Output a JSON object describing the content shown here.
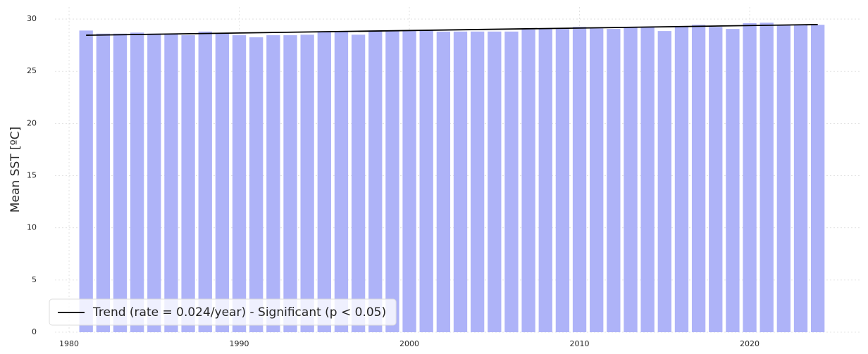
{
  "chart_data": {
    "type": "bar",
    "ylabel": "Mean SST [ºC]",
    "x": [
      1981,
      1982,
      1983,
      1984,
      1985,
      1986,
      1987,
      1988,
      1989,
      1990,
      1991,
      1992,
      1993,
      1994,
      1995,
      1996,
      1997,
      1998,
      1999,
      2000,
      2001,
      2002,
      2003,
      2004,
      2005,
      2006,
      2007,
      2008,
      2009,
      2010,
      2011,
      2012,
      2013,
      2014,
      2015,
      2016,
      2017,
      2018,
      2019,
      2020,
      2021,
      2022,
      2023,
      2024
    ],
    "values": [
      28.9,
      28.6,
      28.6,
      28.7,
      28.6,
      28.6,
      28.45,
      28.8,
      28.65,
      28.45,
      28.25,
      28.45,
      28.45,
      28.5,
      28.8,
      28.8,
      28.5,
      28.9,
      28.9,
      28.85,
      28.9,
      28.8,
      28.8,
      28.8,
      28.8,
      28.8,
      29.0,
      29.05,
      29.05,
      29.25,
      29.1,
      29.05,
      29.2,
      29.25,
      28.85,
      29.25,
      29.45,
      29.25,
      29.05,
      29.6,
      29.65,
      29.45,
      29.45,
      29.45
    ],
    "color": "#aeb3f8",
    "trend": {
      "name": "Trend (rate = 0.024/year) - Significant (p < 0.05)",
      "color": "#000000",
      "x": [
        1981,
        2024
      ],
      "values": [
        28.45,
        29.47
      ]
    },
    "xlim": [
      1979.17,
      2026.54
    ],
    "ylim": [
      0,
      31.15
    ],
    "xticks": [
      1980,
      1990,
      2000,
      2010,
      2020
    ],
    "yticks": [
      0,
      5,
      10,
      15,
      20,
      25,
      30
    ],
    "grid": true,
    "legend": "lower left"
  }
}
